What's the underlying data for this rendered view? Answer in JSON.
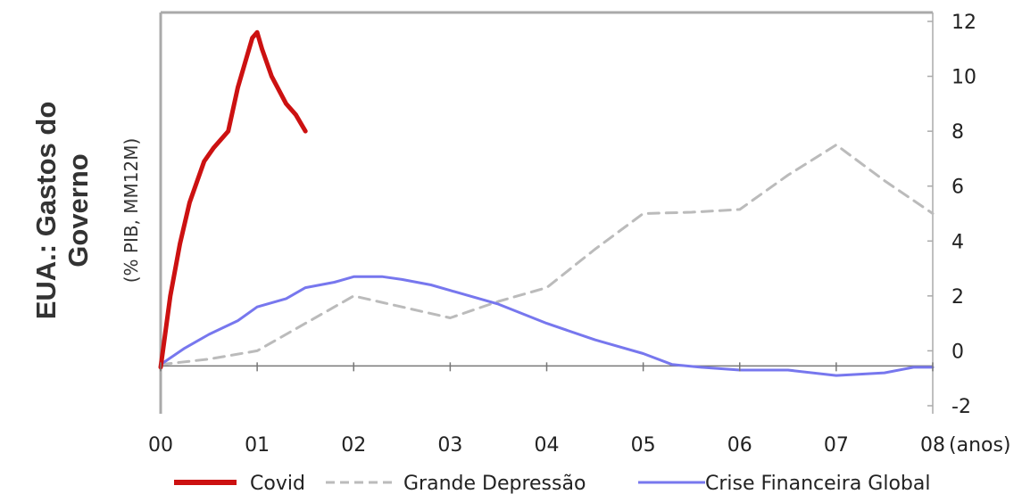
{
  "chart_data": {
    "type": "line",
    "title_line1": "EUA.: Gastos do",
    "title_line2": "Governo",
    "ylabel": "(% PIB, MM12M)",
    "xlabel": "(anos)",
    "x_tick_labels": [
      "00",
      "01",
      "02",
      "03",
      "04",
      "05",
      "06",
      "07",
      "08"
    ],
    "y_tick_labels": [
      "12",
      "10",
      "8",
      "6",
      "4",
      "2",
      "0",
      "-2"
    ],
    "y_tick_values": [
      12,
      10,
      8,
      6,
      4,
      2,
      0,
      -2
    ],
    "xlim": [
      0,
      8
    ],
    "ylim": [
      -2,
      12
    ],
    "y_axis_side": "right",
    "legend_position": "bottom",
    "series": [
      {
        "name": "Covid",
        "color": "#cc1111",
        "style": "solid",
        "x": [
          0,
          0.1,
          0.2,
          0.3,
          0.45,
          0.55,
          0.7,
          0.8,
          0.9,
          0.95,
          1.0,
          1.05,
          1.15,
          1.3,
          1.4,
          1.5
        ],
        "y": [
          -0.6,
          2.0,
          3.9,
          5.4,
          6.9,
          7.4,
          8.0,
          9.6,
          10.8,
          11.4,
          11.6,
          11.0,
          10.0,
          9.0,
          8.6,
          8.0
        ]
      },
      {
        "name": "Grande Depressão",
        "color": "#bbbbbb",
        "style": "dashed",
        "x": [
          0,
          0.5,
          1.0,
          1.5,
          2.0,
          2.5,
          3.0,
          3.5,
          4.0,
          4.5,
          5.0,
          5.5,
          6.0,
          6.5,
          7.0,
          7.5,
          8.0
        ],
        "y": [
          -0.5,
          -0.3,
          0.0,
          1.0,
          2.0,
          1.6,
          1.2,
          1.8,
          2.3,
          3.7,
          5.0,
          5.05,
          5.15,
          6.4,
          7.5,
          6.2,
          5.0
        ]
      },
      {
        "name": "Crise Financeira Global",
        "color": "#7777ee",
        "style": "solid",
        "x": [
          0,
          0.25,
          0.5,
          0.8,
          1.0,
          1.3,
          1.5,
          1.8,
          2.0,
          2.3,
          2.5,
          2.8,
          3.0,
          3.5,
          4.0,
          4.5,
          5.0,
          5.3,
          5.6,
          6.0,
          6.5,
          7.0,
          7.5,
          7.8,
          8.0
        ],
        "y": [
          -0.5,
          0.1,
          0.6,
          1.1,
          1.6,
          1.9,
          2.3,
          2.5,
          2.7,
          2.7,
          2.6,
          2.4,
          2.2,
          1.7,
          1.0,
          0.4,
          -0.1,
          -0.5,
          -0.6,
          -0.7,
          -0.7,
          -0.9,
          -0.8,
          -0.6,
          -0.6
        ]
      }
    ]
  }
}
